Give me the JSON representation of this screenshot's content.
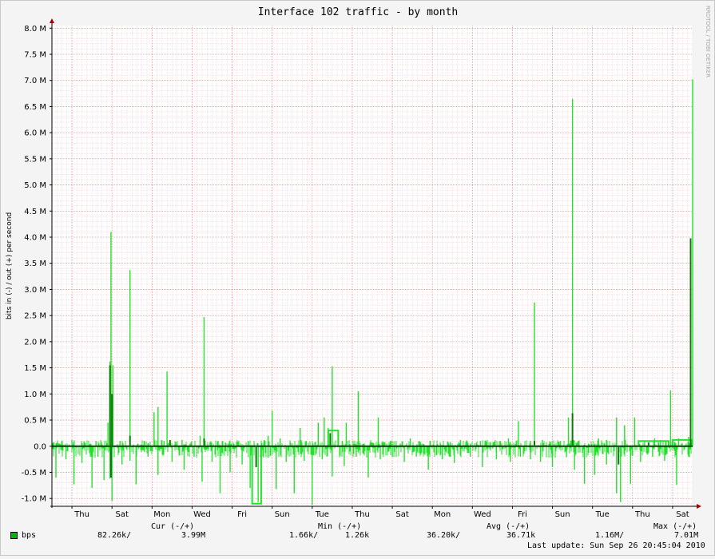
{
  "chart_data": {
    "type": "line",
    "title": "Interface 102 traffic - by month",
    "ylabel": "bits in (-) / out (+) per second",
    "watermark": "RRDTOOL / TOBI OETIKER",
    "ylim": [
      -1.15,
      8.05
    ],
    "y_unit": "M",
    "y_ticks": [
      {
        "v": 8.0,
        "label": "8.0 M"
      },
      {
        "v": 7.5,
        "label": "7.5 M"
      },
      {
        "v": 7.0,
        "label": "7.0 M"
      },
      {
        "v": 6.5,
        "label": "6.5 M"
      },
      {
        "v": 6.0,
        "label": "6.0 M"
      },
      {
        "v": 5.5,
        "label": "5.5 M"
      },
      {
        "v": 5.0,
        "label": "5.0 M"
      },
      {
        "v": 4.5,
        "label": "4.5 M"
      },
      {
        "v": 4.0,
        "label": "4.0 M"
      },
      {
        "v": 3.5,
        "label": "3.5 M"
      },
      {
        "v": 3.0,
        "label": "3.0 M"
      },
      {
        "v": 2.5,
        "label": "2.5 M"
      },
      {
        "v": 2.0,
        "label": "2.0 M"
      },
      {
        "v": 1.5,
        "label": "1.5 M"
      },
      {
        "v": 1.0,
        "label": "1.0 M"
      },
      {
        "v": 0.5,
        "label": "0.5 M"
      },
      {
        "v": 0.0,
        "label": "0.0"
      },
      {
        "v": -0.5,
        "label": "-0.5 M"
      },
      {
        "v": -1.0,
        "label": "-1.0 M"
      }
    ],
    "x_range": [
      0,
      32
    ],
    "x_ticks": [
      {
        "d": 1.5,
        "label": "Thu"
      },
      {
        "d": 3.5,
        "label": "Sat"
      },
      {
        "d": 5.5,
        "label": "Mon"
      },
      {
        "d": 7.5,
        "label": "Wed"
      },
      {
        "d": 9.5,
        "label": "Fri"
      },
      {
        "d": 11.5,
        "label": "Sun"
      },
      {
        "d": 13.5,
        "label": "Tue"
      },
      {
        "d": 15.5,
        "label": "Thu"
      },
      {
        "d": 17.5,
        "label": "Sat"
      },
      {
        "d": 19.5,
        "label": "Mon"
      },
      {
        "d": 21.5,
        "label": "Wed"
      },
      {
        "d": 23.5,
        "label": "Fri"
      },
      {
        "d": 25.5,
        "label": "Sun"
      },
      {
        "d": 27.5,
        "label": "Tue"
      },
      {
        "d": 29.5,
        "label": "Thu"
      },
      {
        "d": 31.5,
        "label": "Sat"
      }
    ],
    "series": [
      {
        "name": "bps",
        "color": "#00ff00",
        "out_spikes": [
          [
            0.1,
            0.08
          ],
          [
            0.4,
            0.05
          ],
          [
            1.0,
            0.12
          ],
          [
            1.6,
            0.08
          ],
          [
            2.2,
            0.1
          ],
          [
            2.8,
            0.45
          ],
          [
            2.9,
            1.62
          ],
          [
            2.95,
            4.1
          ],
          [
            3.05,
            1.55
          ],
          [
            3.4,
            0.1
          ],
          [
            3.9,
            3.37
          ],
          [
            4.3,
            0.05
          ],
          [
            4.6,
            0.1
          ],
          [
            5.1,
            0.65
          ],
          [
            5.3,
            0.75
          ],
          [
            5.6,
            0.1
          ],
          [
            5.75,
            1.43
          ],
          [
            6.2,
            0.08
          ],
          [
            6.5,
            0.12
          ],
          [
            6.9,
            0.05
          ],
          [
            7.4,
            0.2
          ],
          [
            7.6,
            2.47
          ],
          [
            7.9,
            0.08
          ],
          [
            8.3,
            0.1
          ],
          [
            8.8,
            0.05
          ],
          [
            9.3,
            0.08
          ],
          [
            9.8,
            0.1
          ],
          [
            10.1,
            0.05
          ],
          [
            10.6,
            0.12
          ],
          [
            10.8,
            0.2
          ],
          [
            11.0,
            0.68
          ],
          [
            11.4,
            0.15
          ],
          [
            11.9,
            0.08
          ],
          [
            12.4,
            0.35
          ],
          [
            12.7,
            0.1
          ],
          [
            13.3,
            0.45
          ],
          [
            13.6,
            0.55
          ],
          [
            13.8,
            0.35
          ],
          [
            14.0,
            1.53
          ],
          [
            14.5,
            0.1
          ],
          [
            14.7,
            0.45
          ],
          [
            15.3,
            1.05
          ],
          [
            15.9,
            0.08
          ],
          [
            16.3,
            0.55
          ],
          [
            16.9,
            0.1
          ],
          [
            17.4,
            0.05
          ],
          [
            17.9,
            0.15
          ],
          [
            18.4,
            0.08
          ],
          [
            18.9,
            0.1
          ],
          [
            19.4,
            0.05
          ],
          [
            19.9,
            0.08
          ],
          [
            20.4,
            0.12
          ],
          [
            20.9,
            0.05
          ],
          [
            21.4,
            0.1
          ],
          [
            21.9,
            0.08
          ],
          [
            22.4,
            0.1
          ],
          [
            22.8,
            0.15
          ],
          [
            23.3,
            0.48
          ],
          [
            23.9,
            0.1
          ],
          [
            24.1,
            2.75
          ],
          [
            24.5,
            0.12
          ],
          [
            24.9,
            0.08
          ],
          [
            25.4,
            0.1
          ],
          [
            25.8,
            0.55
          ],
          [
            26.0,
            6.65
          ],
          [
            26.3,
            0.1
          ],
          [
            26.8,
            0.05
          ],
          [
            27.3,
            0.15
          ],
          [
            27.7,
            0.12
          ],
          [
            28.2,
            0.55
          ],
          [
            28.6,
            0.4
          ],
          [
            29.1,
            0.55
          ],
          [
            29.6,
            0.1
          ],
          [
            30.1,
            0.15
          ],
          [
            30.4,
            0.12
          ],
          [
            30.9,
            1.07
          ],
          [
            31.3,
            0.15
          ],
          [
            31.8,
            0.18
          ],
          [
            32.0,
            7.02
          ]
        ],
        "in_spikes": [
          [
            0.2,
            -0.6
          ],
          [
            0.7,
            -0.25
          ],
          [
            1.1,
            -0.73
          ],
          [
            1.5,
            -0.32
          ],
          [
            2.0,
            -0.8
          ],
          [
            2.3,
            -0.2
          ],
          [
            2.6,
            -0.65
          ],
          [
            2.9,
            -0.62
          ],
          [
            3.0,
            -1.05
          ],
          [
            3.5,
            -0.35
          ],
          [
            3.9,
            -0.28
          ],
          [
            4.2,
            -0.73
          ],
          [
            4.8,
            -0.2
          ],
          [
            5.3,
            -0.55
          ],
          [
            6.0,
            -0.3
          ],
          [
            6.6,
            -0.45
          ],
          [
            7.1,
            -0.2
          ],
          [
            7.5,
            -0.68
          ],
          [
            8.0,
            -0.3
          ],
          [
            8.4,
            -0.9
          ],
          [
            8.9,
            -0.5
          ],
          [
            9.5,
            -0.35
          ],
          [
            9.9,
            -0.8
          ],
          [
            10.3,
            -1.07
          ],
          [
            10.8,
            -0.22
          ],
          [
            11.2,
            -0.82
          ],
          [
            11.7,
            -0.3
          ],
          [
            12.1,
            -0.9
          ],
          [
            12.6,
            -0.28
          ],
          [
            13.0,
            -1.12
          ],
          [
            13.5,
            -0.25
          ],
          [
            14.0,
            -0.58
          ],
          [
            14.6,
            -0.38
          ],
          [
            15.2,
            -0.2
          ],
          [
            15.8,
            -0.6
          ],
          [
            16.4,
            -0.25
          ],
          [
            17.0,
            -0.2
          ],
          [
            17.6,
            -0.3
          ],
          [
            18.2,
            -0.2
          ],
          [
            18.8,
            -0.45
          ],
          [
            19.5,
            -0.25
          ],
          [
            20.1,
            -0.32
          ],
          [
            20.9,
            -0.2
          ],
          [
            21.5,
            -0.4
          ],
          [
            22.2,
            -0.25
          ],
          [
            22.9,
            -0.3
          ],
          [
            23.4,
            -0.2
          ],
          [
            23.9,
            -0.25
          ],
          [
            24.4,
            -0.3
          ],
          [
            25.0,
            -0.4
          ],
          [
            25.7,
            -0.2
          ],
          [
            26.1,
            -0.45
          ],
          [
            26.6,
            -0.72
          ],
          [
            27.1,
            -0.55
          ],
          [
            27.7,
            -0.35
          ],
          [
            28.2,
            -0.9
          ],
          [
            28.4,
            -1.07
          ],
          [
            28.9,
            -0.72
          ],
          [
            29.4,
            -0.3
          ],
          [
            30.0,
            -0.2
          ],
          [
            30.6,
            -0.28
          ],
          [
            31.2,
            -0.74
          ],
          [
            31.8,
            -0.2
          ]
        ],
        "in_plateau": {
          "from": 10.0,
          "to": 10.45,
          "value": -1.1
        },
        "out_plateaus": [
          {
            "from": 13.8,
            "to": 14.3,
            "value": 0.3
          },
          {
            "from": 29.3,
            "to": 30.8,
            "value": 0.1
          },
          {
            "from": 31.0,
            "to": 31.95,
            "value": 0.12
          }
        ],
        "avg_out_spikes": [
          [
            2.9,
            1.55
          ],
          [
            3.0,
            1.0
          ],
          [
            3.9,
            0.2
          ],
          [
            5.9,
            0.12
          ],
          [
            7.6,
            0.15
          ],
          [
            13.9,
            0.25
          ],
          [
            24.1,
            0.1
          ],
          [
            26.0,
            0.63
          ],
          [
            29.8,
            0.07
          ],
          [
            31.9,
            3.98
          ]
        ],
        "avg_in_spikes": [
          [
            2.95,
            -0.6
          ],
          [
            10.2,
            -0.4
          ],
          [
            28.3,
            -0.35
          ]
        ]
      }
    ],
    "legend": {
      "headers": {
        "cur": "Cur (-/+)",
        "min": "Min (-/+)",
        "avg": "Avg (-/+)",
        "max": "Max (-/+)"
      },
      "label": "bps",
      "swatch_color": "#00b800",
      "cur_in": "82.26k/",
      "cur_out": "3.99M",
      "min_in": "1.66k/",
      "min_out": "1.26k",
      "avg_in": "36.20k/",
      "avg_out": "36.71k",
      "max_in": "1.16M/",
      "max_out": "7.01M"
    },
    "last_update": "Last update: Sun Sep 26 20:45:04 2010"
  }
}
